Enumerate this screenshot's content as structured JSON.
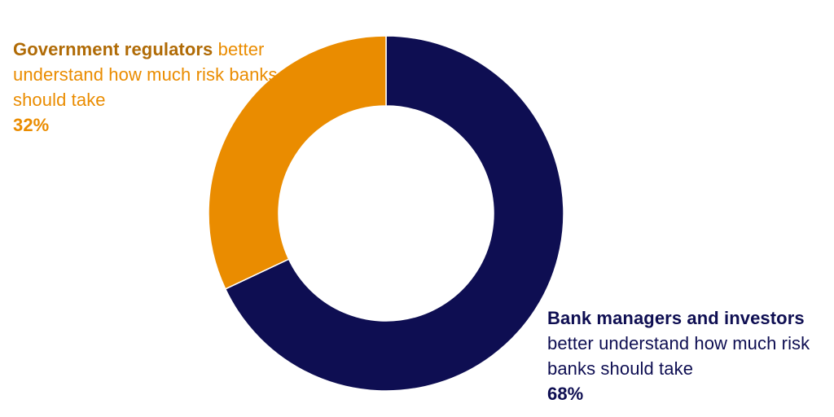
{
  "colors": {
    "bank_managers": "#0e0e52",
    "government_regulators": "#ea8c00",
    "government_label_bold": "#b06b06",
    "background": "#ffffff"
  },
  "chart_data": {
    "type": "pie",
    "variant": "donut",
    "title": "",
    "slices": [
      {
        "bold_label": "Bank managers and investors",
        "label_rest": "better understand how much risk banks should take",
        "value": 68,
        "value_label": "68%",
        "color": "#0e0e52"
      },
      {
        "bold_label": "Government regulators",
        "label_rest": "better understand how much risk banks should take",
        "value": 32,
        "value_label": "32%",
        "color": "#ea8c00"
      }
    ],
    "start": "12 o'clock",
    "direction": "clockwise",
    "legend": "none",
    "data_labels": "outside callouts"
  }
}
